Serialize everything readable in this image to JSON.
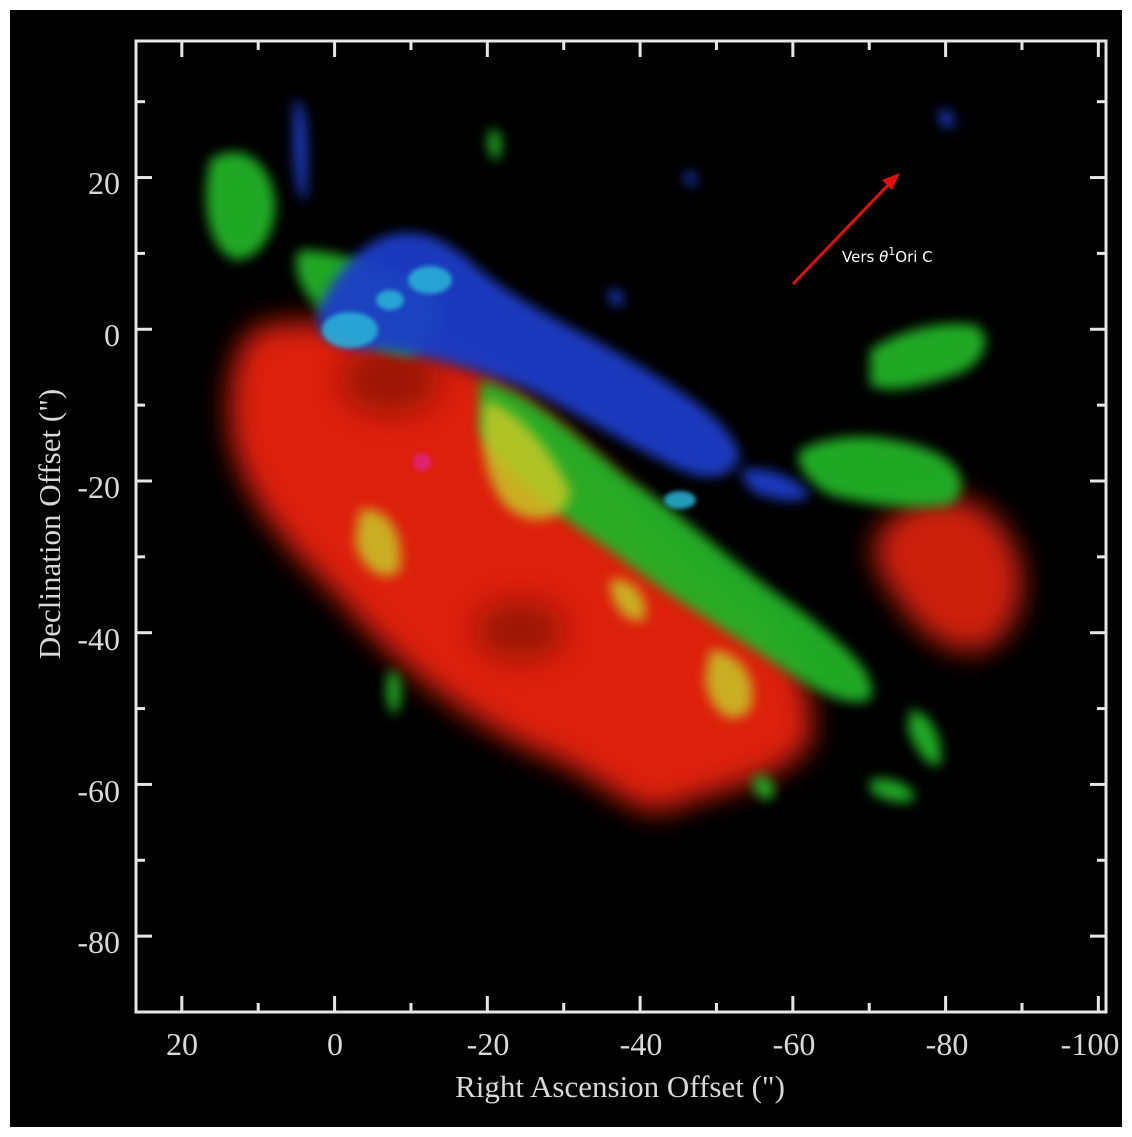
{
  "figure": {
    "xlabel": "Right Ascension Offset (\")",
    "ylabel": "Declination Offset (\")",
    "x_ticks": [
      "20",
      "0",
      "-20",
      "-40",
      "-60",
      "-80",
      "-100"
    ],
    "y_ticks": [
      "20",
      "0",
      "-20",
      "-40",
      "-60",
      "-80"
    ],
    "x_range": [
      26,
      -101
    ],
    "y_range": [
      -90,
      38
    ],
    "annotation": {
      "prefix": "Vers ",
      "symbol": "θ",
      "superscript": "1",
      "suffix": "Ori C"
    },
    "colors": {
      "background": "#000000",
      "frame": "#e6e6e6",
      "arrow": "#e01010",
      "red_emission": "#e8220e",
      "green_emission": "#22b228",
      "blue_emission": "#1f3cc8",
      "cyan_emission": "#2ab6d8",
      "yellow_emission": "#c8c828"
    }
  }
}
